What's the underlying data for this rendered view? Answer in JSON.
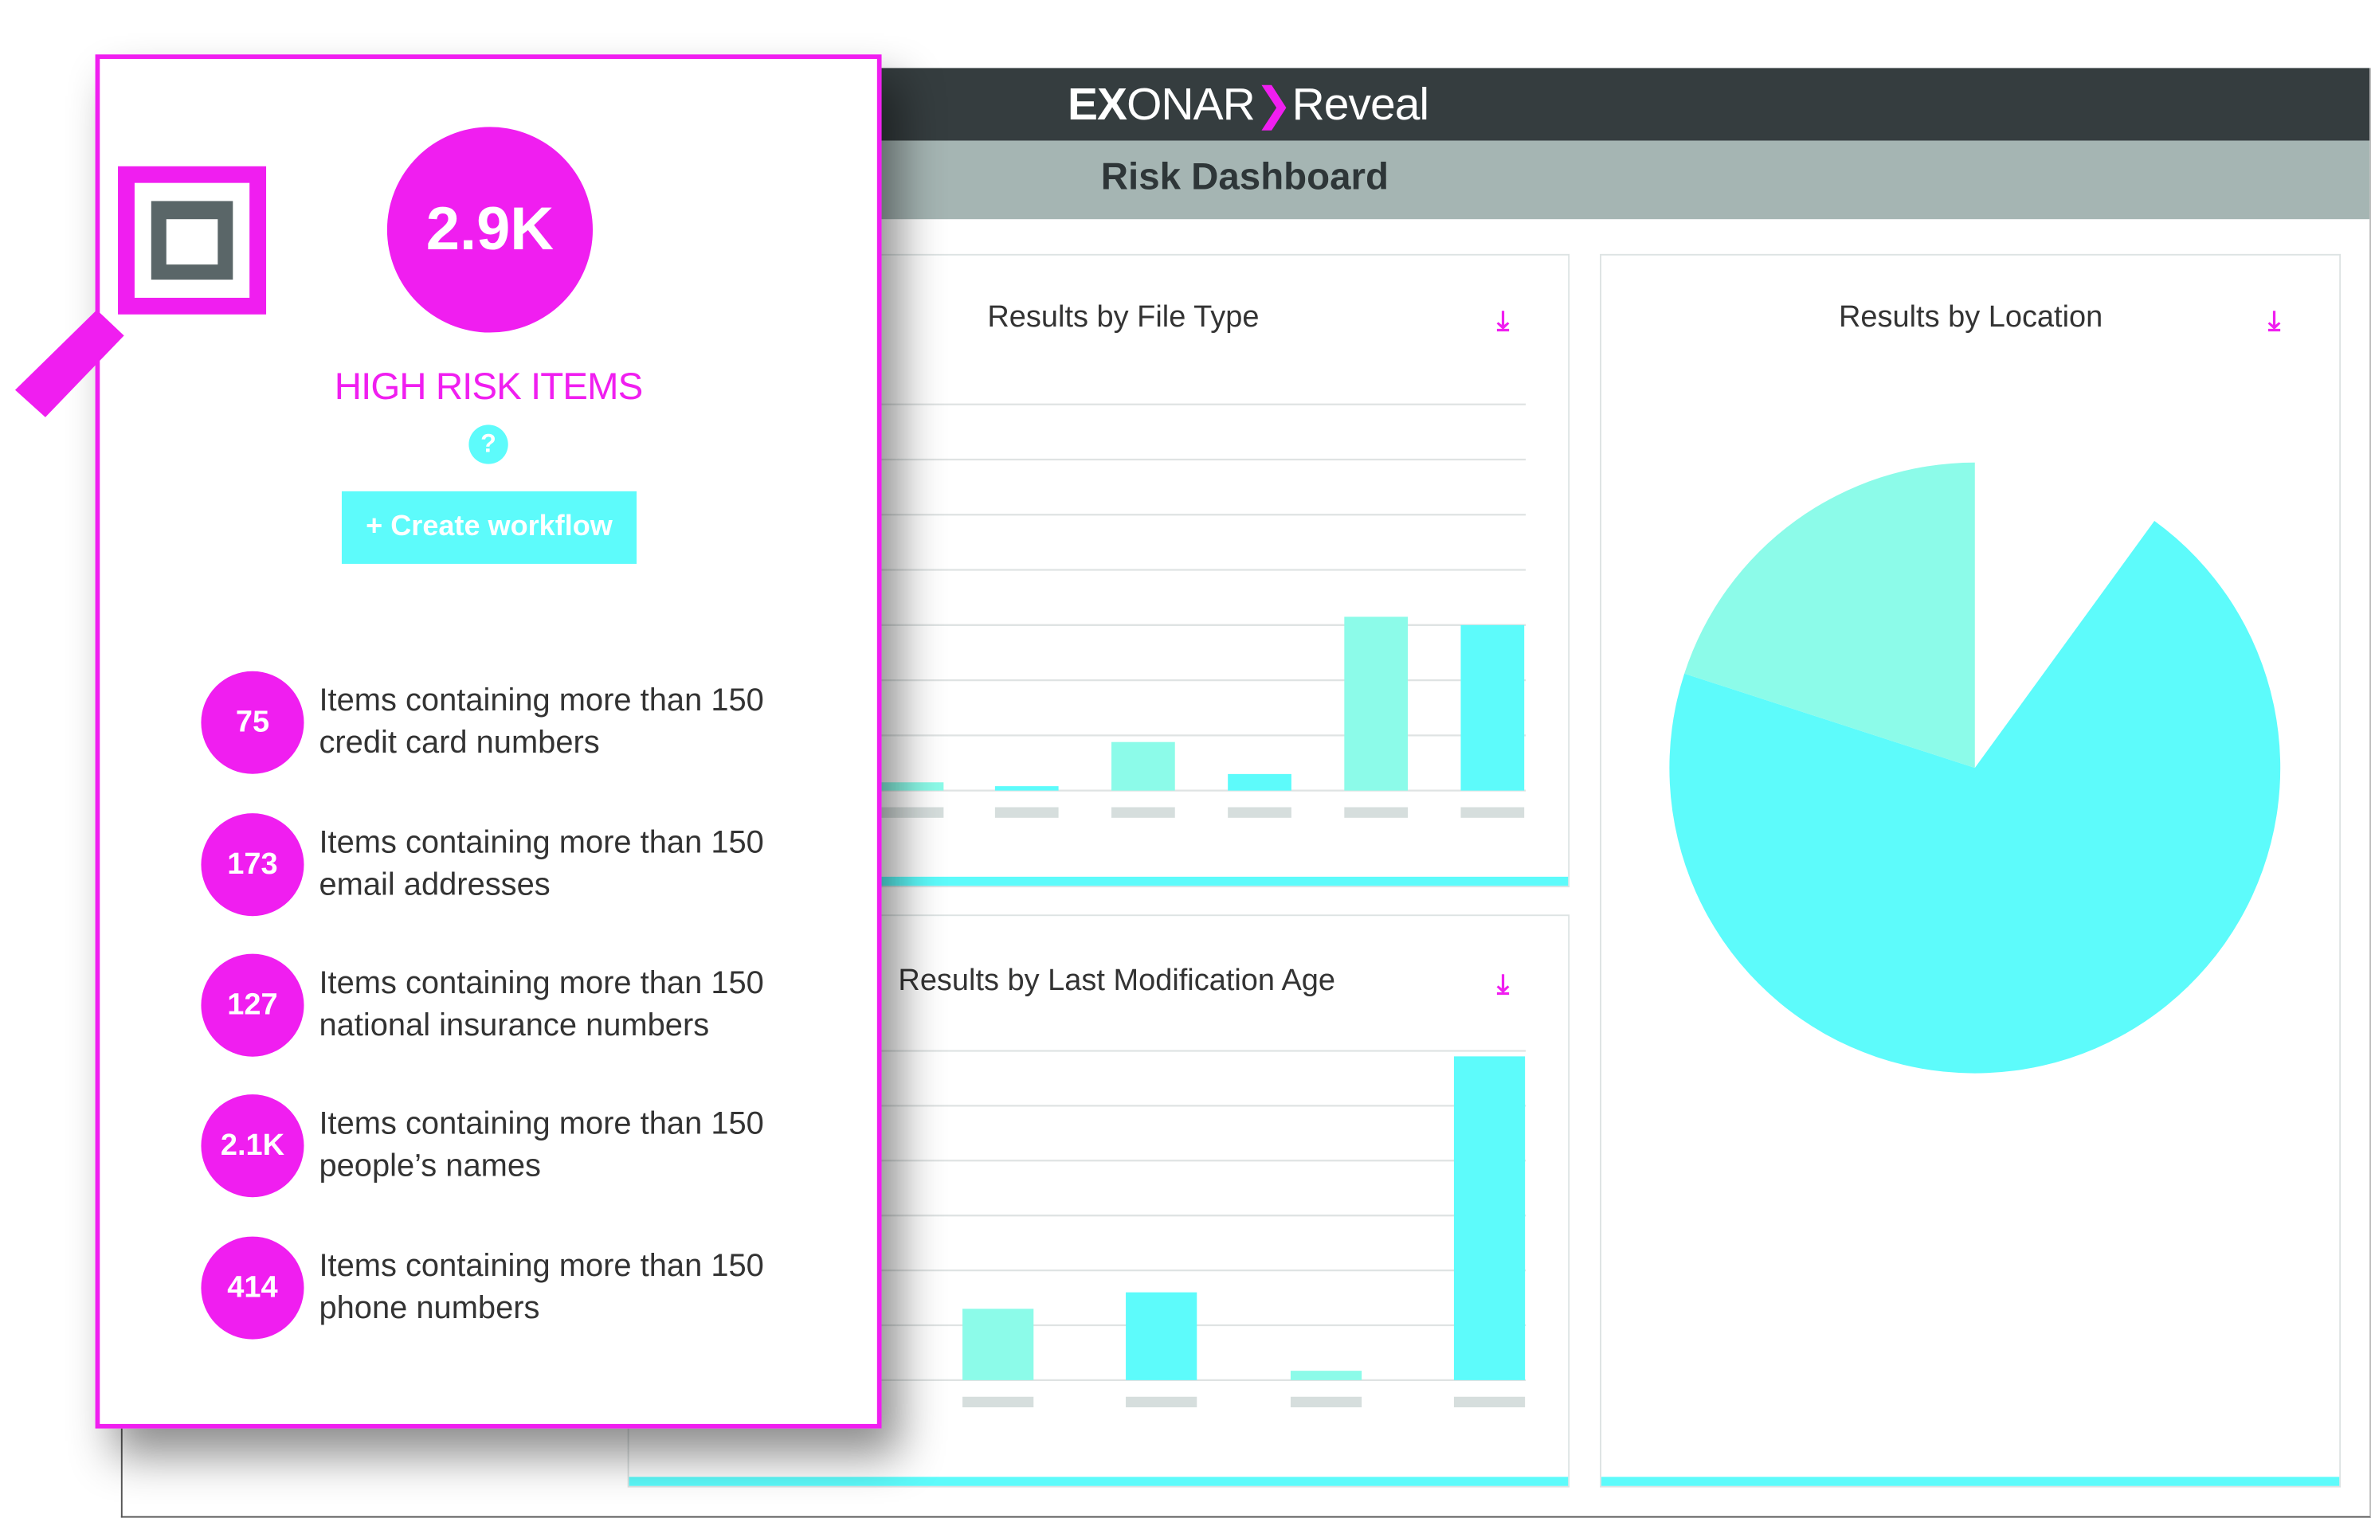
{
  "app": {
    "logo": {
      "brand_bold": "EX",
      "brand_rest": "ONAR",
      "product": "Reveal"
    },
    "page_title": "Risk Dashboard"
  },
  "colors": {
    "magenta": "#f01ef0",
    "cyan": "#5dfbfb",
    "teal": "#8cfbe9",
    "header_dark": "#353d3f",
    "header_gray": "#a5b5b3"
  },
  "popup": {
    "icon": "magnifier-icon",
    "total": "2.9K",
    "label": "HIGH RISK ITEMS",
    "help": "?",
    "create_workflow": "+ Create workflow",
    "items": [
      {
        "count": "75",
        "line1": "Items containing more than 150",
        "line2": "credit card numbers"
      },
      {
        "count": "173",
        "line1": "Items containing more than 150",
        "line2": "email addresses"
      },
      {
        "count": "127",
        "line1": "Items containing more than 150",
        "line2": "national insurance numbers"
      },
      {
        "count": "2.1K",
        "line1": "Items containing more than 150",
        "line2": "people’s names"
      },
      {
        "count": "414",
        "line1": "Items containing more than 150",
        "line2": "phone numbers"
      }
    ]
  },
  "chart_data": [
    {
      "type": "bar",
      "title": "Results by File Type",
      "download_icon": "download-icon",
      "grid": true,
      "values": [
        0.15,
        0.08,
        0.88,
        0.3,
        3.15,
        3.0
      ],
      "ylim": [
        0,
        7
      ],
      "colors": [
        "#8cfbe9",
        "#5dfbfb",
        "#8cfbe9",
        "#5dfbfb",
        "#8cfbe9",
        "#5dfbfb"
      ]
    },
    {
      "type": "bar",
      "title": "Results by Last Modification Age",
      "download_icon": "download-icon",
      "grid": true,
      "values": [
        1.3,
        1.6,
        0.17,
        5.9
      ],
      "ylim": [
        0,
        6
      ],
      "colors": [
        "#8cfbe9",
        "#5dfbfb",
        "#8cfbe9",
        "#5dfbfb"
      ]
    },
    {
      "type": "pie",
      "title": "Results by Location",
      "download_icon": "download-icon",
      "values": [
        10,
        70,
        20
      ],
      "colors": [
        "#ffffff",
        "#5dfbfb",
        "#8cfbe9"
      ]
    }
  ]
}
